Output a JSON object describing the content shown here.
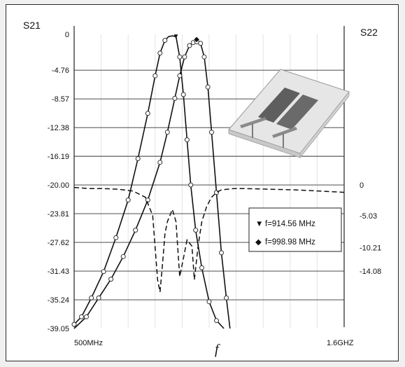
{
  "chart_data": {
    "type": "line",
    "title": "",
    "left_axis": {
      "name": "S21",
      "ticks": [
        "0",
        "-4.76",
        "-8.57",
        "-12.38",
        "-16.19",
        "-20.00",
        "-23.81",
        "-27.62",
        "-31.43",
        "-35.24",
        "-39.05"
      ],
      "range": [
        -39.05,
        0
      ]
    },
    "right_axis": {
      "name": "S22",
      "ticks": [
        "0",
        "-5.03",
        "-10.21",
        "-14.08"
      ],
      "range": [
        -38.0,
        0
      ]
    },
    "x_axis": {
      "label": "f",
      "min_label": "500MHz",
      "max_label": "1.6GHZ",
      "range_mhz": [
        500,
        1600
      ]
    },
    "legend": {
      "placement": "inside right",
      "entries": [
        {
          "marker": "▼",
          "text": "f=914.56 MHz"
        },
        {
          "marker": "◆",
          "text": "f=998.98 MHz"
        }
      ]
    },
    "series": [
      {
        "axis": "left",
        "style": "solid-with-markers",
        "x": [
          500,
          530,
          570,
          620,
          670,
          720,
          760,
          800,
          830,
          850,
          870,
          885,
          900,
          915,
          930,
          945,
          960,
          975,
          995,
          1020,
          1050,
          1080,
          1110
        ],
        "y": [
          -38.5,
          -37.5,
          -35.0,
          -31.5,
          -27.0,
          -22.0,
          -16.5,
          -10.5,
          -5.5,
          -2.5,
          -0.8,
          -0.3,
          -0.2,
          -0.3,
          -3.0,
          -8.0,
          -14.0,
          -20.0,
          -26.0,
          -31.0,
          -35.5,
          -38.0,
          -39.05
        ]
      },
      {
        "axis": "left",
        "style": "solid-with-markers",
        "x": [
          500,
          550,
          600,
          650,
          700,
          750,
          800,
          850,
          880,
          910,
          930,
          950,
          970,
          985,
          1000,
          1015,
          1030,
          1045,
          1060,
          1080,
          1100,
          1120,
          1135
        ],
        "y": [
          -39.05,
          -37.5,
          -35.0,
          -32.5,
          -29.5,
          -26.0,
          -22.0,
          -17.0,
          -13.0,
          -8.5,
          -5.5,
          -3.0,
          -1.5,
          -1.1,
          -1.0,
          -1.2,
          -3.0,
          -7.0,
          -13.0,
          -21.0,
          -29.0,
          -35.0,
          -39.05
        ]
      },
      {
        "axis": "right",
        "style": "dashed",
        "x": [
          500,
          560,
          620,
          680,
          740,
          790,
          820,
          840,
          850,
          860,
          870,
          880,
          900,
          915,
          930,
          945,
          960,
          980,
          990,
          1005,
          1020,
          1040,
          1060,
          1080,
          1100,
          1150,
          1200,
          1300,
          1400,
          1500,
          1600
        ],
        "y": [
          -0.4,
          -0.6,
          -0.6,
          -0.7,
          -1.0,
          -2.0,
          -5.0,
          -15.5,
          -17.5,
          -13.0,
          -8.0,
          -6.0,
          -4.0,
          -6.0,
          -15.0,
          -12.0,
          -9.0,
          -10.0,
          -15.5,
          -10.0,
          -6.0,
          -3.5,
          -2.0,
          -1.2,
          -0.8,
          -0.6,
          -0.6,
          -0.7,
          -0.8,
          -1.0,
          -1.2
        ]
      }
    ],
    "grid": true,
    "inset": "PCB filter layout drawing"
  }
}
